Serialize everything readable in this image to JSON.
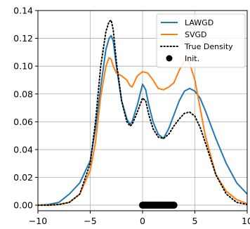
{
  "chart_data": {
    "type": "line",
    "title": "",
    "xlabel": "",
    "ylabel": "",
    "xlim": [
      -10,
      10
    ],
    "ylim": [
      -0.004,
      0.14
    ],
    "xticks": [
      -10,
      -5,
      0,
      5,
      10
    ],
    "xtick_labels": [
      "−10",
      "−5",
      "0",
      "5",
      "10"
    ],
    "yticks": [
      0.0,
      0.02,
      0.04,
      0.06,
      0.08,
      0.1,
      0.12,
      0.14
    ],
    "ytick_labels": [
      "0.00",
      "0.02",
      "0.04",
      "0.06",
      "0.08",
      "0.10",
      "0.12",
      "0.14"
    ],
    "grid": true,
    "legend_position": "top-right",
    "series": [
      {
        "name": "LAWGD",
        "style": "solid",
        "color": "#1f77b4",
        "x": [
          -10,
          -9,
          -8,
          -7,
          -6,
          -5,
          -4.5,
          -4,
          -3.5,
          -3.2,
          -3,
          -2.8,
          -2.5,
          -2,
          -1.5,
          -1.2,
          -1,
          -0.5,
          0,
          0.3,
          0.6,
          1,
          1.5,
          2,
          2.5,
          3,
          3.5,
          4,
          4.5,
          5,
          5.5,
          6,
          7,
          8,
          9,
          10
        ],
        "y": [
          0.0,
          0.0005,
          0.002,
          0.008,
          0.016,
          0.032,
          0.055,
          0.085,
          0.112,
          0.12,
          0.122,
          0.118,
          0.1,
          0.075,
          0.062,
          0.058,
          0.06,
          0.072,
          0.087,
          0.083,
          0.072,
          0.06,
          0.051,
          0.048,
          0.055,
          0.065,
          0.075,
          0.082,
          0.084,
          0.082,
          0.077,
          0.068,
          0.048,
          0.03,
          0.016,
          0.008
        ]
      },
      {
        "name": "SVGD",
        "style": "solid",
        "color": "#ff7f0e",
        "x": [
          -10,
          -9,
          -8,
          -7,
          -6,
          -5,
          -4.5,
          -4,
          -3.5,
          -3.2,
          -3,
          -2.8,
          -2.5,
          -2,
          -1.5,
          -1.2,
          -1,
          -0.5,
          0,
          0.5,
          1,
          1.5,
          2,
          2.5,
          3,
          3.5,
          4,
          4.3,
          4.5,
          5,
          5.5,
          6,
          7,
          8,
          9,
          10
        ],
        "y": [
          0.0,
          0.0,
          0.0005,
          0.002,
          0.008,
          0.025,
          0.045,
          0.078,
          0.1,
          0.106,
          0.105,
          0.1,
          0.095,
          0.093,
          0.09,
          0.086,
          0.085,
          0.093,
          0.096,
          0.095,
          0.09,
          0.084,
          0.083,
          0.085,
          0.088,
          0.097,
          0.104,
          0.105,
          0.102,
          0.09,
          0.07,
          0.05,
          0.022,
          0.01,
          0.004,
          0.001
        ]
      },
      {
        "name": "True Density",
        "style": "dotted",
        "color": "#000000",
        "x": [
          -10,
          -9,
          -8,
          -7,
          -6,
          -5,
          -4.5,
          -4,
          -3.5,
          -3.2,
          -3,
          -2.8,
          -2.5,
          -2,
          -1.5,
          -1.2,
          -1,
          -0.5,
          0,
          0.3,
          0.6,
          1,
          1.5,
          2,
          2.5,
          3,
          3.5,
          4,
          4.5,
          5,
          5.5,
          6,
          7,
          8,
          9,
          10
        ],
        "y": [
          0.0,
          0.0,
          0.0005,
          0.002,
          0.008,
          0.03,
          0.06,
          0.1,
          0.125,
          0.132,
          0.133,
          0.126,
          0.103,
          0.075,
          0.06,
          0.057,
          0.058,
          0.067,
          0.077,
          0.075,
          0.065,
          0.055,
          0.049,
          0.048,
          0.051,
          0.057,
          0.062,
          0.066,
          0.067,
          0.064,
          0.056,
          0.045,
          0.022,
          0.008,
          0.002,
          0.0005
        ]
      },
      {
        "name": "Init.",
        "style": "markers",
        "color": "#000000",
        "x_range": [
          0,
          3
        ],
        "y": 0.0
      }
    ]
  }
}
